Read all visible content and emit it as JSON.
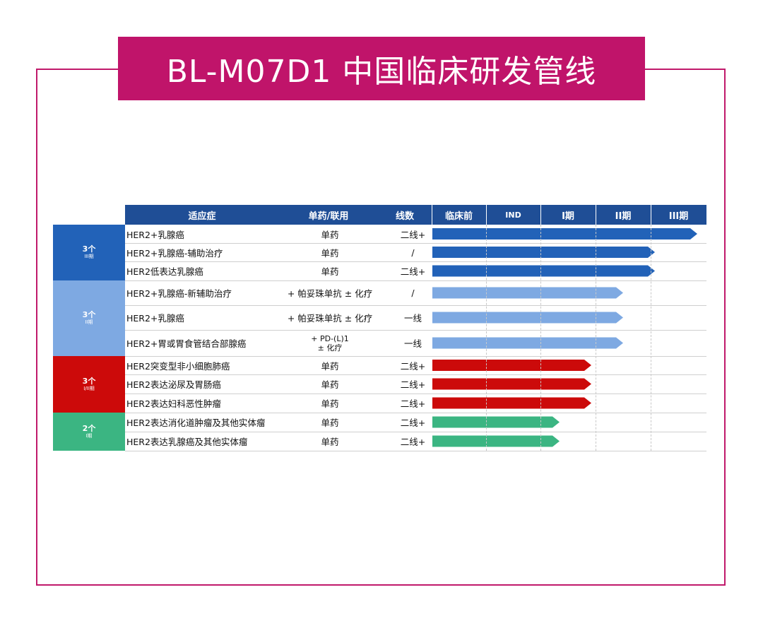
{
  "title": "BL-M07D1 中国临床研发管线",
  "header": {
    "indication": "适应症",
    "drug": "单药/联用",
    "lines": "线数",
    "phases": [
      "临床前",
      "IND",
      "I期",
      "II期",
      "III期"
    ]
  },
  "groups": [
    {
      "count": "3个",
      "phase": "III期",
      "color": "#2262b8"
    },
    {
      "count": "3个",
      "phase": "II期",
      "color": "#7ea9e2"
    },
    {
      "count": "3个",
      "phase": "I/II期",
      "color": "#cc0a0a"
    },
    {
      "count": "2个",
      "phase": "I期",
      "color": "#3bb582"
    }
  ],
  "rows": [
    {
      "indication": "HER2+乳腺癌",
      "drug": "单药",
      "lines": "二线+",
      "progress": 1.0
    },
    {
      "indication": "HER2+乳腺癌-辅助治疗",
      "drug": "单药",
      "lines": "/",
      "progress": 0.84
    },
    {
      "indication": "HER2低表达乳腺癌",
      "drug": "单药",
      "lines": "二线+",
      "progress": 0.84
    },
    {
      "indication": "HER2+乳腺癌-新辅助治疗",
      "drug": "+ 帕妥珠单抗 ± 化疗",
      "lines": "/",
      "progress": 0.72
    },
    {
      "indication": "HER2+乳腺癌",
      "drug": "+ 帕妥珠单抗 ± 化疗",
      "lines": "一线",
      "progress": 0.72
    },
    {
      "indication": "HER2+胃或胃食管结合部腺癌",
      "drug": "+ PD-(L)1",
      "drug2": "± 化疗",
      "lines": "一线",
      "progress": 0.72
    },
    {
      "indication": "HER2突变型非小细胞肺癌",
      "drug": "单药",
      "lines": "二线+",
      "progress": 0.6
    },
    {
      "indication": "HER2表达泌尿及胃肠癌",
      "drug": "单药",
      "lines": "二线+",
      "progress": 0.6
    },
    {
      "indication": "HER2表达妇科恶性肿瘤",
      "drug": "单药",
      "lines": "二线+",
      "progress": 0.6
    },
    {
      "indication": "HER2表达消化道肿瘤及其他实体瘤",
      "drug": "单药",
      "lines": "二线+",
      "progress": 0.48
    },
    {
      "indication": "HER2表达乳腺癌及其他实体瘤",
      "drug": "单药",
      "lines": "二线+",
      "progress": 0.48
    }
  ]
}
